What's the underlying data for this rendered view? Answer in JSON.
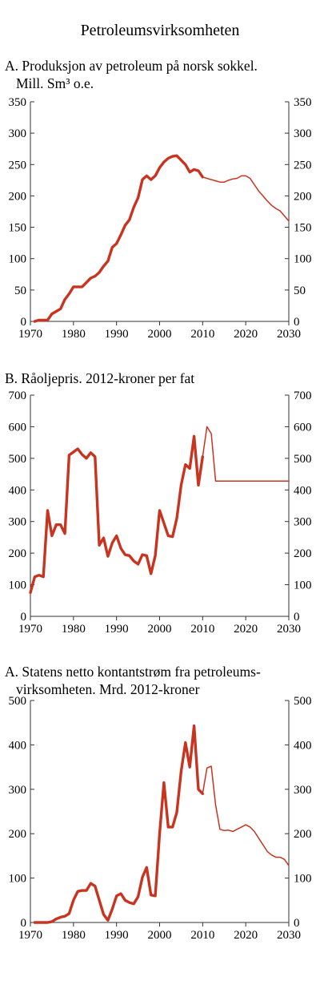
{
  "page": {
    "title": "Petroleumsvirksomheten"
  },
  "chart_data": [
    {
      "type": "line",
      "title": "A. Produksjon av petroleum på norsk sokkel.",
      "title_line2": "Mill. Sm³  o.e.",
      "xlabel": "",
      "ylabel": "",
      "xlim": [
        1970,
        2030
      ],
      "ylim": [
        0,
        350
      ],
      "xticks": [
        1970,
        1980,
        1990,
        2000,
        2010,
        2020,
        2030
      ],
      "yticks": [
        0,
        50,
        100,
        150,
        200,
        250,
        300,
        350
      ],
      "grid": false,
      "legend": "none",
      "series": [
        {
          "style": "historical",
          "color": "#c8341f",
          "x": [
            1971,
            1972,
            1973,
            1974,
            1975,
            1976,
            1977,
            1978,
            1979,
            1980,
            1981,
            1982,
            1983,
            1984,
            1985,
            1986,
            1987,
            1988,
            1989,
            1990,
            1991,
            1992,
            1993,
            1994,
            1995,
            1996,
            1997,
            1998,
            1999,
            2000,
            2001,
            2002,
            2003,
            2004,
            2005,
            2006,
            2007,
            2008,
            2009,
            2010
          ],
          "y": [
            0,
            2,
            2,
            2,
            12,
            16,
            20,
            35,
            44,
            55,
            55,
            55,
            62,
            69,
            72,
            78,
            88,
            96,
            118,
            124,
            138,
            153,
            162,
            182,
            197,
            226,
            232,
            226,
            232,
            245,
            254,
            260,
            263,
            264,
            257,
            250,
            238,
            242,
            240,
            230
          ]
        },
        {
          "style": "projection",
          "color": "#c8341f",
          "x": [
            2010,
            2011,
            2012,
            2013,
            2014,
            2015,
            2016,
            2017,
            2018,
            2019,
            2020,
            2021,
            2022,
            2023,
            2024,
            2025,
            2026,
            2027,
            2028,
            2029,
            2030
          ],
          "y": [
            230,
            228,
            226,
            224,
            222,
            222,
            225,
            227,
            228,
            232,
            232,
            228,
            218,
            208,
            200,
            192,
            185,
            180,
            176,
            168,
            160
          ]
        }
      ]
    },
    {
      "type": "line",
      "title": "B. Råoljepris. 2012-kroner per fat",
      "xlabel": "",
      "ylabel": "",
      "xlim": [
        1970,
        2030
      ],
      "ylim": [
        0,
        700
      ],
      "xticks": [
        1970,
        1980,
        1990,
        2000,
        2010,
        2020,
        2030
      ],
      "yticks": [
        0,
        100,
        200,
        300,
        400,
        500,
        600,
        700
      ],
      "grid": false,
      "legend": "none",
      "series": [
        {
          "style": "historical",
          "color": "#c8341f",
          "x": [
            1970,
            1971,
            1972,
            1973,
            1974,
            1975,
            1976,
            1977,
            1978,
            1979,
            1980,
            1981,
            1982,
            1983,
            1984,
            1985,
            1986,
            1987,
            1988,
            1989,
            1990,
            1991,
            1992,
            1993,
            1994,
            1995,
            1996,
            1997,
            1998,
            1999,
            2000,
            2001,
            2002,
            2003,
            2004,
            2005,
            2006,
            2007,
            2008,
            2009,
            2010
          ],
          "y": [
            75,
            125,
            130,
            125,
            335,
            255,
            290,
            290,
            262,
            510,
            520,
            530,
            512,
            500,
            518,
            505,
            225,
            248,
            190,
            232,
            255,
            215,
            195,
            192,
            175,
            165,
            195,
            192,
            135,
            192,
            335,
            295,
            255,
            252,
            310,
            415,
            480,
            468,
            570,
            415,
            505
          ]
        },
        {
          "style": "projection",
          "color": "#c8341f",
          "x": [
            2010,
            2011,
            2012,
            2013,
            2014,
            2020,
            2025,
            2030
          ],
          "y": [
            505,
            600,
            578,
            428,
            428,
            428,
            428,
            428
          ]
        }
      ]
    },
    {
      "type": "line",
      "title": "A. Statens netto kontantstrøm fra petroleums-",
      "title_line2": "virksomheten. Mrd. 2012-kroner",
      "xlabel": "",
      "ylabel": "",
      "xlim": [
        1970,
        2030
      ],
      "ylim": [
        0,
        500
      ],
      "xticks": [
        1970,
        1980,
        1990,
        2000,
        2010,
        2020,
        2030
      ],
      "yticks": [
        0,
        100,
        200,
        300,
        400,
        500
      ],
      "grid": false,
      "legend": "none",
      "series": [
        {
          "style": "historical",
          "color": "#c8341f",
          "x": [
            1971,
            1972,
            1973,
            1974,
            1975,
            1976,
            1977,
            1978,
            1979,
            1980,
            1981,
            1982,
            1983,
            1984,
            1985,
            1986,
            1987,
            1988,
            1989,
            1990,
            1991,
            1992,
            1993,
            1994,
            1995,
            1996,
            1997,
            1998,
            1999,
            2000,
            2001,
            2002,
            2003,
            2004,
            2005,
            2006,
            2007,
            2008,
            2009,
            2010
          ],
          "y": [
            0,
            0,
            0,
            0,
            2,
            8,
            12,
            14,
            20,
            50,
            70,
            72,
            72,
            88,
            82,
            50,
            18,
            5,
            30,
            60,
            65,
            50,
            45,
            42,
            58,
            102,
            124,
            62,
            60,
            200,
            315,
            215,
            215,
            248,
            340,
            405,
            350,
            443,
            300,
            290
          ]
        },
        {
          "style": "projection",
          "color": "#c8341f",
          "x": [
            2010,
            2011,
            2012,
            2013,
            2014,
            2015,
            2016,
            2017,
            2018,
            2019,
            2020,
            2021,
            2022,
            2023,
            2024,
            2025,
            2026,
            2027,
            2028,
            2029,
            2030
          ],
          "y": [
            290,
            348,
            352,
            265,
            210,
            207,
            208,
            205,
            210,
            215,
            220,
            215,
            205,
            190,
            175,
            160,
            152,
            147,
            147,
            142,
            128
          ]
        }
      ]
    }
  ]
}
